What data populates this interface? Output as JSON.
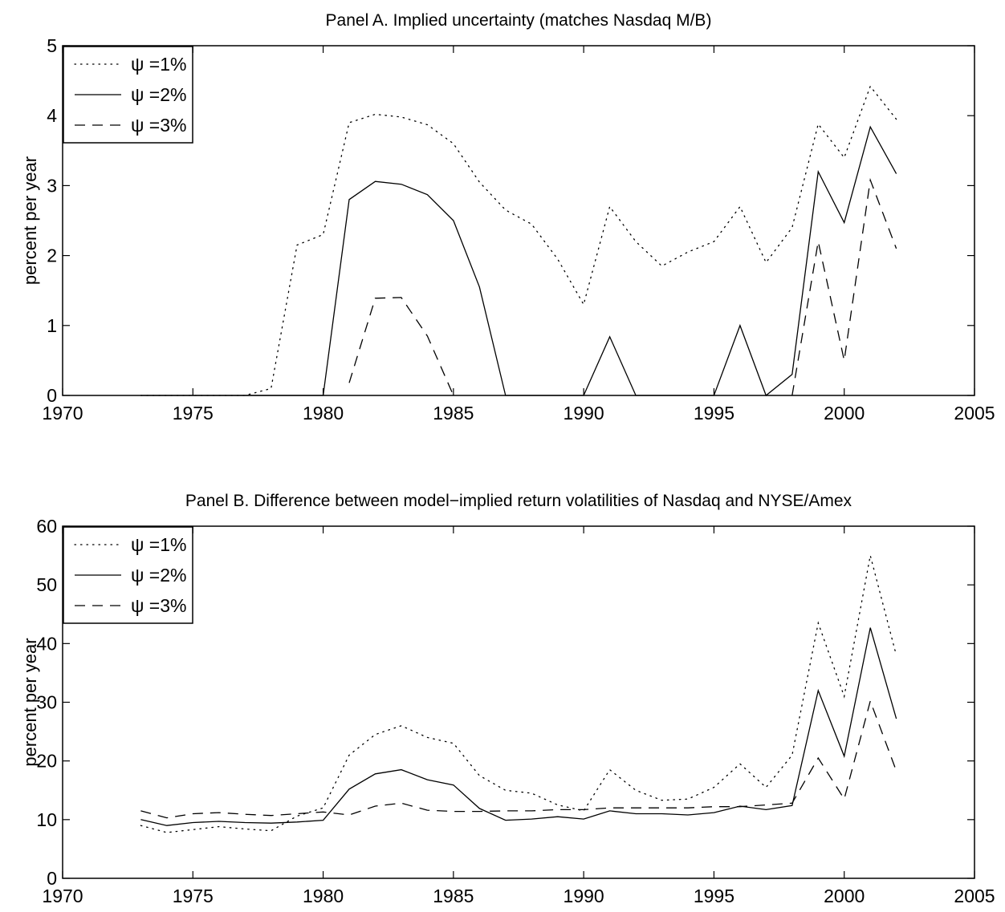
{
  "chart_data": [
    {
      "type": "line",
      "title": "Panel A. Implied uncertainty (matches Nasdaq M/B)",
      "xlabel": "",
      "ylabel": "percent per year",
      "xlim": [
        1970,
        2005
      ],
      "ylim": [
        0,
        5
      ],
      "x_ticks": [
        "1970",
        "1975",
        "1980",
        "1985",
        "1990",
        "1995",
        "2000",
        "2005"
      ],
      "y_ticks": [
        "0",
        "1",
        "2",
        "3",
        "4",
        "5"
      ],
      "legend_position": "top-left",
      "x": [
        1973,
        1974,
        1975,
        1976,
        1977,
        1978,
        1979,
        1980,
        1981,
        1982,
        1983,
        1984,
        1985,
        1986,
        1987,
        1988,
        1989,
        1990,
        1991,
        1992,
        1993,
        1994,
        1995,
        1996,
        1997,
        1998,
        1999,
        2000,
        2001,
        2002
      ],
      "series": [
        {
          "name": "ψ =1%",
          "style": "dotted",
          "values": [
            0,
            0,
            0,
            0,
            0,
            0.1,
            2.15,
            2.3,
            3.9,
            4.02,
            3.98,
            3.87,
            3.6,
            3.05,
            2.65,
            2.45,
            1.95,
            1.3,
            2.7,
            2.2,
            1.85,
            2.05,
            2.2,
            2.7,
            1.9,
            2.4,
            3.88,
            3.4,
            4.42,
            3.95
          ]
        },
        {
          "name": "ψ =2%",
          "style": "solid",
          "values": [
            0,
            0,
            0,
            0,
            0,
            0,
            0,
            0,
            2.8,
            3.06,
            3.02,
            2.87,
            2.5,
            1.55,
            0,
            0,
            0,
            0,
            0.84,
            0,
            0,
            0,
            0,
            1.0,
            0,
            0.3,
            3.2,
            2.47,
            3.84,
            3.17
          ]
        },
        {
          "name": "ψ =3%",
          "style": "dashed",
          "values": [
            null,
            null,
            null,
            null,
            null,
            null,
            null,
            null,
            0.18,
            1.39,
            1.4,
            0.85,
            0,
            null,
            null,
            null,
            null,
            null,
            null,
            null,
            null,
            null,
            null,
            null,
            null,
            0,
            2.2,
            0.5,
            3.08,
            2.1
          ]
        }
      ]
    },
    {
      "type": "line",
      "title": "Panel B. Difference between model−implied return volatilities of Nasdaq and NYSE/Amex",
      "xlabel": "",
      "ylabel": "percent per year",
      "xlim": [
        1970,
        2005
      ],
      "ylim": [
        0,
        60
      ],
      "x_ticks": [
        "1970",
        "1975",
        "1980",
        "1985",
        "1990",
        "1995",
        "2000",
        "2005"
      ],
      "y_ticks": [
        "0",
        "10",
        "20",
        "30",
        "40",
        "50",
        "60"
      ],
      "legend_position": "top-left",
      "x": [
        1973,
        1974,
        1975,
        1976,
        1977,
        1978,
        1979,
        1980,
        1981,
        1982,
        1983,
        1984,
        1985,
        1986,
        1987,
        1988,
        1989,
        1990,
        1991,
        1992,
        1993,
        1994,
        1995,
        1996,
        1997,
        1998,
        1999,
        2000,
        2001,
        2002
      ],
      "series": [
        {
          "name": "ψ =1%",
          "style": "dotted",
          "values": [
            9.0,
            7.8,
            8.3,
            8.8,
            8.4,
            8.1,
            10.6,
            12.0,
            21.0,
            24.5,
            26.0,
            24.0,
            23.0,
            17.5,
            15.0,
            14.5,
            12.5,
            11.5,
            18.5,
            15.0,
            13.3,
            13.5,
            15.5,
            19.5,
            15.5,
            21.0,
            43.5,
            31.0,
            55.0,
            38.0
          ]
        },
        {
          "name": "ψ =2%",
          "style": "solid",
          "values": [
            10.0,
            9.0,
            9.5,
            9.7,
            9.5,
            9.4,
            9.6,
            9.9,
            15.2,
            17.8,
            18.5,
            16.8,
            15.9,
            11.9,
            9.9,
            10.1,
            10.5,
            10.1,
            11.5,
            11.0,
            11.0,
            10.8,
            11.2,
            12.3,
            11.7,
            12.4,
            32.0,
            20.8,
            42.7,
            27.2
          ]
        },
        {
          "name": "ψ =3%",
          "style": "dashed",
          "values": [
            11.5,
            10.3,
            11.0,
            11.2,
            10.9,
            10.7,
            11.0,
            11.3,
            10.8,
            12.3,
            12.8,
            11.6,
            11.4,
            11.4,
            11.5,
            11.5,
            11.7,
            11.7,
            12.0,
            12.0,
            12.0,
            12.0,
            12.2,
            12.2,
            12.5,
            12.8,
            20.5,
            13.5,
            30.2,
            18.3
          ]
        }
      ]
    }
  ]
}
